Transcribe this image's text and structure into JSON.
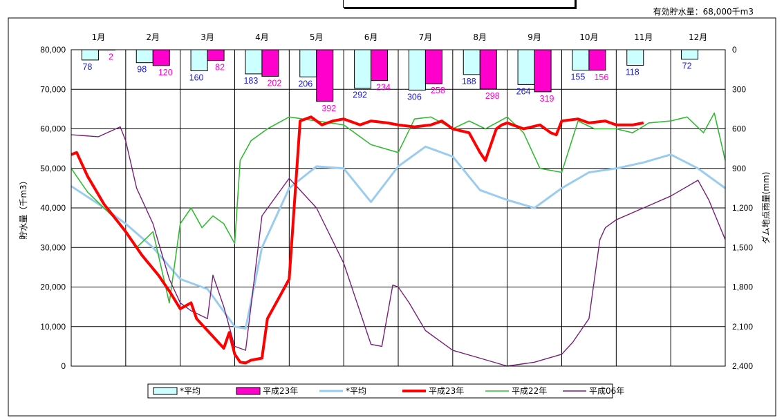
{
  "header": {
    "capacity_label": "有効貯水量：68,000千m3"
  },
  "chart_data": {
    "type": "line",
    "title": "",
    "xlabel": "",
    "ylabel": "貯水量（千m3）",
    "y2label": "ダム地点雨量(mm)",
    "ylim": [
      0,
      80000
    ],
    "y2lim": [
      0,
      2400
    ],
    "y2_inverted": true,
    "y_ticks": [
      "0",
      "10,000",
      "20,000",
      "30,000",
      "40,000",
      "50,000",
      "60,000",
      "70,000",
      "80,000"
    ],
    "y2_ticks": [
      "0",
      "300",
      "600",
      "900",
      "1,200",
      "1,500",
      "1,800",
      "2,100",
      "2,400"
    ],
    "categories": [
      "1月",
      "2月",
      "3月",
      "4月",
      "5月",
      "6月",
      "7月",
      "8月",
      "9月",
      "10月",
      "11月",
      "12月"
    ],
    "grid": true,
    "legend_position": "bottom",
    "colors": {
      "avg_rain_fill": "#ccffff",
      "h23_rain_fill": "#ff00cc",
      "avg_storage": "#99ccee",
      "h23_storage": "#ff0000",
      "h22_storage": "#33bb33",
      "h06_storage": "#7a1f7a",
      "avg_label": "#1a1ad6",
      "h23_label": "#ff00cc"
    },
    "legend": [
      {
        "key": "avg_rain",
        "label": "*平均"
      },
      {
        "key": "h23_rain",
        "label": "平成23年"
      },
      {
        "key": "avg_storage",
        "label": "*平均"
      },
      {
        "key": "h23_storage",
        "label": "平成23年"
      },
      {
        "key": "h22_storage",
        "label": "平成22年"
      },
      {
        "key": "h06_storage",
        "label": "平成06年"
      }
    ],
    "rain_series": [
      {
        "key": "avg_rain",
        "values": [
          78,
          98,
          160,
          183,
          206,
          292,
          306,
          188,
          264,
          155,
          118,
          72
        ]
      },
      {
        "key": "h23_rain",
        "values": [
          2,
          120,
          82,
          202,
          392,
          234,
          258,
          298,
          319,
          156,
          null,
          null
        ]
      }
    ],
    "storage_series": [
      {
        "key": "avg_storage",
        "x": [
          0,
          0.5,
          1,
          1.5,
          2,
          2.5,
          3,
          3.2,
          3.5,
          4,
          4.5,
          5,
          5.5,
          6,
          6.5,
          7,
          7.5,
          8,
          8.5,
          9,
          9.5,
          10,
          10.5,
          11,
          11.5,
          12
        ],
        "y": [
          45500,
          41000,
          36000,
          30000,
          22000,
          19500,
          10000,
          9500,
          30000,
          45000,
          50500,
          50000,
          41500,
          50500,
          55500,
          53000,
          44500,
          42000,
          40000,
          45000,
          49000,
          50000,
          51500,
          53500,
          50000,
          45000
        ]
      },
      {
        "key": "h23_storage",
        "x": [
          0,
          0.1,
          0.3,
          0.6,
          1,
          1.3,
          1.6,
          1.8,
          2,
          2.2,
          2.3,
          2.5,
          2.7,
          2.8,
          2.9,
          3,
          3.1,
          3.2,
          3.3,
          3.5,
          3.6,
          3.8,
          4,
          4.2,
          4.4,
          4.6,
          4.8,
          5,
          5.3,
          5.5,
          5.8,
          6,
          6.3,
          6.6,
          6.8,
          7,
          7.3,
          7.5,
          7.6,
          7.8,
          7.9,
          8,
          8.3,
          8.6,
          8.8,
          8.9,
          9,
          9.3,
          9.5,
          9.8,
          10,
          10.3,
          10.5
        ],
        "y": [
          53500,
          54000,
          48000,
          41000,
          34000,
          28000,
          23000,
          19000,
          14500,
          16000,
          12000,
          9000,
          6000,
          4500,
          8500,
          3000,
          1000,
          800,
          1500,
          2000,
          12000,
          17000,
          22000,
          62000,
          63000,
          61000,
          62000,
          62500,
          61000,
          62000,
          61500,
          61000,
          60500,
          61000,
          62000,
          60000,
          59000,
          54000,
          52000,
          60000,
          61000,
          61500,
          60000,
          61000,
          59000,
          58500,
          62000,
          62500,
          61500,
          62000,
          61000,
          61000,
          61500
        ]
      },
      {
        "key": "h22_storage",
        "x": [
          0,
          0.3,
          0.6,
          0.9,
          1.2,
          1.5,
          1.8,
          2,
          2.2,
          2.4,
          2.6,
          2.8,
          3,
          3.1,
          3.3,
          3.6,
          4,
          4.5,
          5,
          5.5,
          6,
          6.3,
          6.6,
          7,
          7.3,
          7.6,
          8,
          8.3,
          8.6,
          9,
          9.3,
          9.6,
          10,
          10.3,
          10.6,
          11,
          11.3,
          11.6,
          11.8,
          12
        ],
        "y": [
          50000,
          44000,
          40000,
          36000,
          30000,
          34000,
          16000,
          36000,
          40000,
          35000,
          38000,
          36000,
          31000,
          52000,
          57000,
          60000,
          63000,
          62000,
          61000,
          56000,
          54000,
          62500,
          63000,
          60000,
          62000,
          60000,
          63000,
          59000,
          50000,
          49000,
          62000,
          60000,
          60000,
          59000,
          61500,
          62000,
          63000,
          59000,
          64000,
          52000
        ]
      },
      {
        "key": "h06_storage",
        "x": [
          0,
          0.5,
          0.9,
          1,
          1.2,
          1.5,
          1.8,
          2,
          2.2,
          2.5,
          2.6,
          2.8,
          3,
          3.2,
          3.5,
          4,
          4.5,
          5,
          5.5,
          5.7,
          5.9,
          6,
          6.2,
          6.5,
          7,
          7.5,
          8,
          8.5,
          9,
          9.2,
          9.5,
          9.7,
          9.8,
          10,
          10.5,
          11,
          11.5,
          11.7,
          12
        ],
        "y": [
          58500,
          58000,
          60500,
          57000,
          45000,
          36000,
          22000,
          16000,
          14000,
          12000,
          23000,
          15000,
          5000,
          4000,
          38000,
          47500,
          40000,
          26000,
          5500,
          5000,
          20500,
          20000,
          16000,
          9000,
          4000,
          2000,
          0,
          1000,
          3000,
          6000,
          12000,
          32000,
          35000,
          37000,
          40000,
          43000,
          47000,
          42000,
          32000
        ]
      }
    ]
  }
}
